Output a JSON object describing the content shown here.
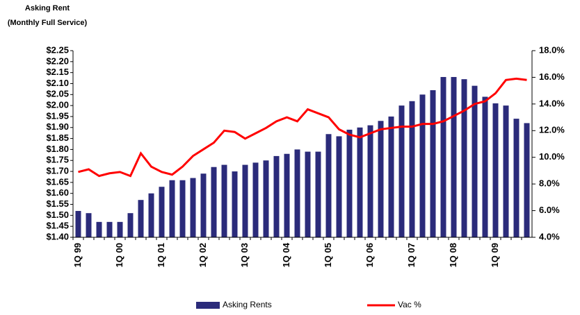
{
  "chart_data": {
    "type": "bar_line",
    "title": "Asking Rent",
    "subtitle": "(Monthly Full Service)",
    "categories": [
      "1Q 99",
      null,
      null,
      null,
      "1Q 00",
      null,
      null,
      null,
      "1Q 01",
      null,
      null,
      null,
      "1Q 02",
      null,
      null,
      null,
      "1Q 03",
      null,
      null,
      null,
      "1Q 04",
      null,
      null,
      null,
      "1Q 05",
      null,
      null,
      null,
      "1Q 06",
      null,
      null,
      null,
      "1Q 07",
      null,
      null,
      null,
      "1Q 08",
      null,
      null,
      null,
      "1Q 09",
      null,
      null,
      null
    ],
    "series": [
      {
        "name": "Asking Rents",
        "color": "#2b2b7a",
        "values": [
          1.52,
          1.51,
          1.47,
          1.47,
          1.47,
          1.51,
          1.57,
          1.6,
          1.63,
          1.66,
          1.66,
          1.67,
          1.69,
          1.72,
          1.73,
          1.7,
          1.73,
          1.74,
          1.75,
          1.77,
          1.78,
          1.8,
          1.79,
          1.79,
          1.87,
          1.86,
          1.89,
          1.9,
          1.91,
          1.93,
          1.95,
          2.0,
          2.02,
          2.05,
          2.07,
          2.13,
          2.13,
          2.12,
          2.09,
          2.04,
          2.01,
          2.0,
          1.94,
          1.92
        ]
      },
      {
        "name": "Vac %",
        "color": "#ff0000",
        "axis": "y2",
        "values": [
          8.9,
          9.1,
          8.6,
          8.8,
          8.9,
          8.6,
          10.3,
          9.3,
          8.9,
          8.7,
          9.3,
          10.1,
          10.6,
          11.1,
          12.0,
          11.9,
          11.4,
          11.8,
          12.2,
          12.7,
          13.0,
          12.7,
          13.6,
          13.3,
          13.0,
          12.1,
          11.7,
          11.5,
          11.8,
          12.1,
          12.2,
          12.3,
          12.3,
          12.5,
          12.5,
          12.7,
          13.1,
          13.5,
          14.0,
          14.2,
          14.8,
          15.8,
          15.9,
          15.8
        ]
      }
    ],
    "ylim": [
      1.4,
      2.25
    ],
    "yticks": [
      {
        "value": 1.4,
        "label": "$1.40"
      },
      {
        "value": 1.45,
        "label": "$1.45"
      },
      {
        "value": 1.5,
        "label": "$1.50"
      },
      {
        "value": 1.55,
        "label": "$1.55"
      },
      {
        "value": 1.6,
        "label": "$1.60"
      },
      {
        "value": 1.65,
        "label": "$1.65"
      },
      {
        "value": 1.7,
        "label": "$1.70"
      },
      {
        "value": 1.75,
        "label": "$1.75"
      },
      {
        "value": 1.8,
        "label": "$1.80"
      },
      {
        "value": 1.85,
        "label": "$1.85"
      },
      {
        "value": 1.9,
        "label": "$1.90"
      },
      {
        "value": 1.95,
        "label": "$1.95"
      },
      {
        "value": 2.0,
        "label": "$2.00"
      },
      {
        "value": 2.05,
        "label": "$2.05"
      },
      {
        "value": 2.1,
        "label": "$2.10"
      },
      {
        "value": 2.15,
        "label": "$2.15"
      },
      {
        "value": 2.2,
        "label": "$2.20"
      },
      {
        "value": 2.25,
        "label": "$2.25"
      }
    ],
    "y2lim": [
      4,
      18
    ],
    "y2ticks": [
      {
        "value": 4,
        "label": "4.0%"
      },
      {
        "value": 6,
        "label": "6.0%"
      },
      {
        "value": 8,
        "label": "8.0%"
      },
      {
        "value": 10,
        "label": "10.0%"
      },
      {
        "value": 12,
        "label": "12.0%"
      },
      {
        "value": 14,
        "label": "14.0%"
      },
      {
        "value": 16,
        "label": "16.0%"
      },
      {
        "value": 18,
        "label": "18.0%"
      }
    ],
    "legend": "bottom"
  }
}
